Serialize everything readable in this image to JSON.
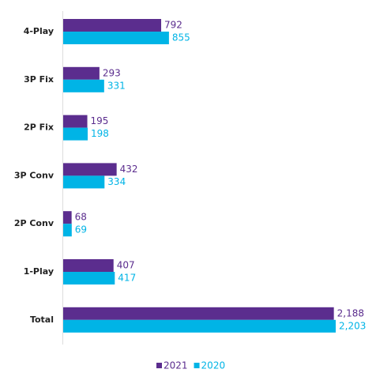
{
  "chart_data": {
    "type": "hbar",
    "categories": [
      "4-Play",
      "3P Fix",
      "2P Fix",
      "3P Conv",
      "2P Conv",
      "1-Play",
      "Total"
    ],
    "series": [
      {
        "name": "2021",
        "color": "#5b2d8e",
        "values": [
          792,
          293,
          195,
          432,
          68,
          407,
          2188
        ],
        "value_labels": [
          "792",
          "293",
          "195",
          "432",
          "68",
          "407",
          "2,188"
        ]
      },
      {
        "name": "2020",
        "color": "#00b4e6",
        "values": [
          855,
          331,
          198,
          334,
          69,
          417,
          2203
        ],
        "value_labels": [
          "855",
          "331",
          "198",
          "334",
          "69",
          "417",
          "2,203"
        ]
      }
    ]
  }
}
